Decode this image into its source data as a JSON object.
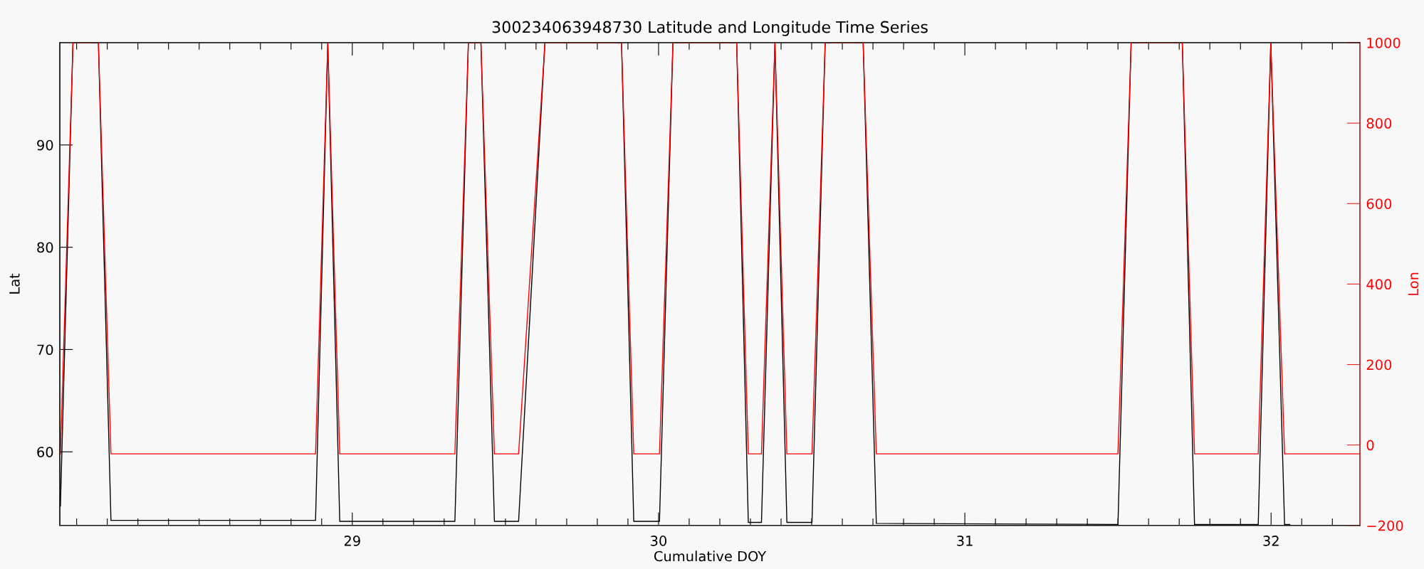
{
  "chart_data": {
    "type": "line",
    "title": "300234063948730 Latitude and Longitude Time Series",
    "xlabel": "Cumulative DOY",
    "ylabel": "Lat",
    "y2label": "Lon",
    "series": [
      {
        "color": "#000000",
        "x": [
          28.047,
          28.088,
          28.171,
          28.212,
          28.88,
          28.92,
          28.959,
          29.335,
          29.379,
          29.42,
          29.464,
          29.543,
          29.629,
          29.879,
          29.919,
          30.003,
          30.047,
          30.255,
          30.293,
          30.336,
          30.38,
          30.419,
          30.501,
          30.544,
          30.668,
          30.711,
          31.5,
          31.543,
          31.71,
          31.75,
          31.958,
          31.999,
          32.044,
          32.061
        ],
        "values": [
          54.7,
          100,
          100,
          53.3,
          53.3,
          100,
          53.2,
          53.2,
          100,
          100,
          53.2,
          53.2,
          100,
          100,
          53.2,
          53.2,
          100,
          100,
          53.1,
          53.1,
          100,
          53.1,
          53.1,
          100,
          100,
          53.0,
          52.9,
          100,
          100,
          52.9,
          52.9,
          100,
          52.9,
          52.9
        ]
      },
      {
        "color": "#ff0000",
        "axis": "y2",
        "x": [
          28.047,
          28.088,
          28.171,
          28.212,
          28.88,
          28.92,
          28.959,
          29.335,
          29.379,
          29.42,
          29.464,
          29.543,
          29.629,
          29.879,
          29.919,
          30.003,
          30.047,
          30.255,
          30.293,
          30.336,
          30.38,
          30.419,
          30.501,
          30.544,
          30.668,
          30.711,
          31.5,
          31.543,
          31.71,
          31.75,
          31.958,
          31.999,
          32.044,
          32.29
        ],
        "values": [
          -22,
          1000,
          1000,
          -22,
          -22,
          1000,
          -22,
          -22,
          1000,
          1000,
          -22,
          -22,
          1000,
          1000,
          -22,
          -22,
          1000,
          1000,
          -22,
          -22,
          1000,
          -22,
          -22,
          1000,
          1000,
          -22,
          -22,
          1000,
          1000,
          -22,
          -22,
          1000,
          -22,
          -22
        ]
      }
    ],
    "xlim": [
      28.045,
      32.29
    ],
    "xticks": [
      {
        "value": 28.1,
        "label": null
      },
      {
        "value": 28.2,
        "label": null
      },
      {
        "value": 28.3,
        "label": null
      },
      {
        "value": 28.4,
        "label": null
      },
      {
        "value": 28.5,
        "label": null
      },
      {
        "value": 28.6,
        "label": null
      },
      {
        "value": 28.7,
        "label": null
      },
      {
        "value": 28.8,
        "label": null
      },
      {
        "value": 28.9,
        "label": null
      },
      29,
      {
        "value": 29.1,
        "label": null
      },
      {
        "value": 29.2,
        "label": null
      },
      {
        "value": 29.3,
        "label": null
      },
      {
        "value": 29.4,
        "label": null
      },
      {
        "value": 29.5,
        "label": null
      },
      {
        "value": 29.6,
        "label": null
      },
      {
        "value": 29.7,
        "label": null
      },
      {
        "value": 29.8,
        "label": null
      },
      {
        "value": 29.9,
        "label": null
      },
      30,
      {
        "value": 30.1,
        "label": null
      },
      {
        "value": 30.2,
        "label": null
      },
      {
        "value": 30.3,
        "label": null
      },
      {
        "value": 30.4,
        "label": null
      },
      {
        "value": 30.5,
        "label": null
      },
      {
        "value": 30.6,
        "label": null
      },
      {
        "value": 30.7,
        "label": null
      },
      {
        "value": 30.8,
        "label": null
      },
      {
        "value": 30.9,
        "label": null
      },
      31,
      {
        "value": 31.1,
        "label": null
      },
      {
        "value": 31.2,
        "label": null
      },
      {
        "value": 31.3,
        "label": null
      },
      {
        "value": 31.4,
        "label": null
      },
      {
        "value": 31.5,
        "label": null
      },
      {
        "value": 31.6,
        "label": null
      },
      {
        "value": 31.7,
        "label": null
      },
      {
        "value": 31.8,
        "label": null
      },
      {
        "value": 31.9,
        "label": null
      },
      32,
      {
        "value": 32.1,
        "label": null
      },
      {
        "value": 32.2,
        "label": null
      }
    ],
    "ylim": [
      52.8,
      100
    ],
    "yticks": [
      60,
      70,
      80,
      90
    ],
    "y2lim": [
      -200,
      1000
    ],
    "y2ticks": [
      {
        "value": -200,
        "label": "−200"
      },
      0,
      200,
      400,
      600,
      800,
      1000
    ],
    "grid": false,
    "marker": "none",
    "line_style": "solid"
  }
}
